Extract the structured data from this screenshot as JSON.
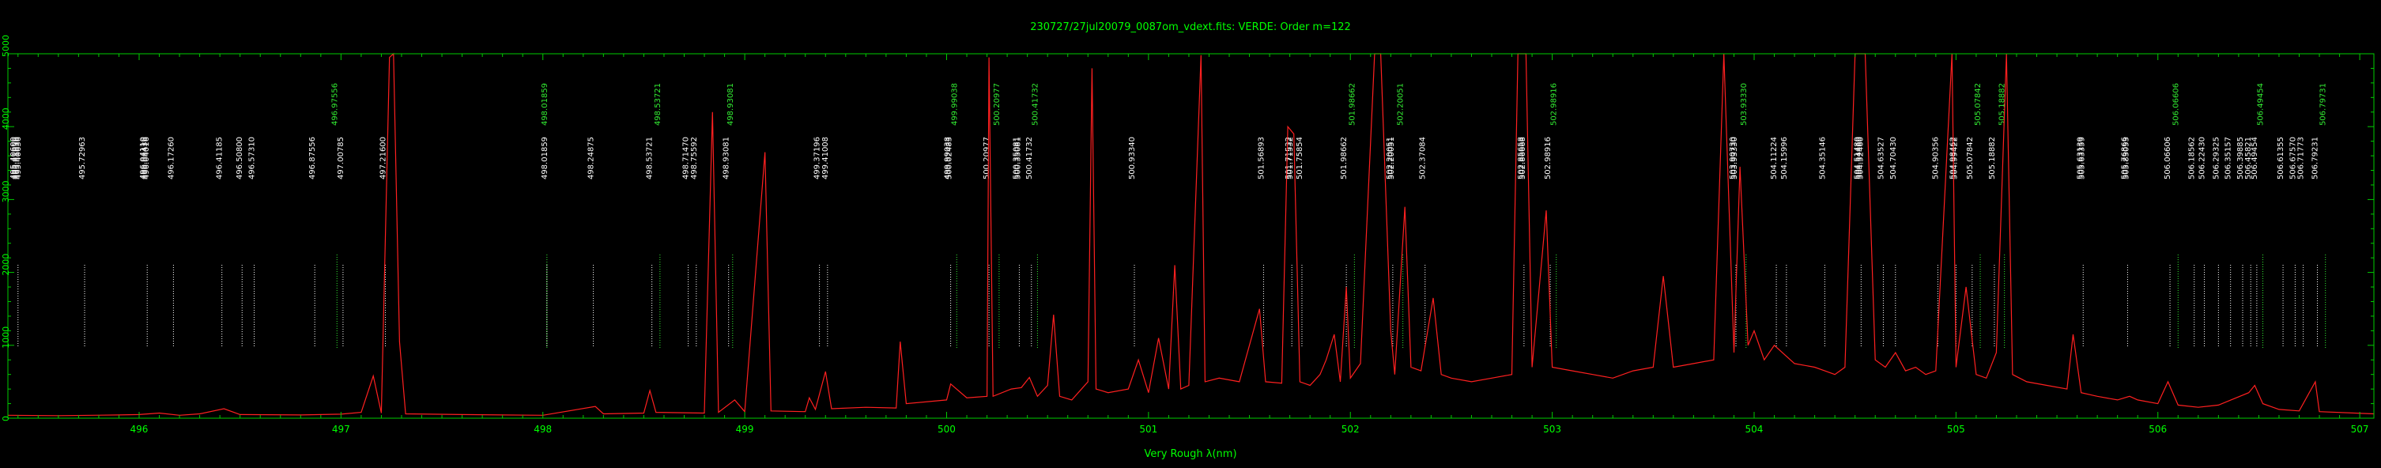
{
  "chart_data": {
    "type": "line",
    "title": "230727/27jul20079_0087om_vdext.fits: VERDE: Order m=122",
    "xlabel": "Very Rough λ(nm)",
    "ylabel": "",
    "xlim": [
      495.35,
      507.07
    ],
    "ylim": [
      0,
      5000
    ],
    "xticks": [
      496,
      497,
      498,
      499,
      500,
      501,
      502,
      503,
      504,
      505,
      506,
      507
    ],
    "yticks": [
      0,
      1000,
      2000,
      3000,
      4000,
      5000
    ],
    "grid": false,
    "legend": "none",
    "colors": {
      "background": "#000000",
      "frame": "#00cc00",
      "axis_text": "#00ff00",
      "spectrum": "#ff2020",
      "line_white": "#ffffff",
      "line_green": "#33ee33"
    },
    "series": [
      {
        "style": "spectrum",
        "points": [
          [
            495.35,
            40
          ],
          [
            495.6,
            35
          ],
          [
            495.9,
            45
          ],
          [
            496.0,
            50
          ],
          [
            496.1,
            70
          ],
          [
            496.2,
            40
          ],
          [
            496.3,
            60
          ],
          [
            496.42,
            130
          ],
          [
            496.5,
            50
          ],
          [
            496.8,
            45
          ],
          [
            497.0,
            55
          ],
          [
            497.1,
            80
          ],
          [
            497.16,
            580
          ],
          [
            497.2,
            70
          ],
          [
            497.24,
            4950
          ],
          [
            497.26,
            5000
          ],
          [
            497.29,
            1050
          ],
          [
            497.32,
            60
          ],
          [
            497.6,
            50
          ],
          [
            498.0,
            40
          ],
          [
            498.26,
            160
          ],
          [
            498.3,
            60
          ],
          [
            498.5,
            70
          ],
          [
            498.53,
            380
          ],
          [
            498.56,
            80
          ],
          [
            498.8,
            70
          ],
          [
            498.84,
            4200
          ],
          [
            498.87,
            80
          ],
          [
            498.95,
            250
          ],
          [
            499.0,
            90
          ],
          [
            499.1,
            3650
          ],
          [
            499.13,
            100
          ],
          [
            499.3,
            90
          ],
          [
            499.32,
            280
          ],
          [
            499.35,
            120
          ],
          [
            499.4,
            640
          ],
          [
            499.43,
            130
          ],
          [
            499.6,
            150
          ],
          [
            499.75,
            140
          ],
          [
            499.77,
            1050
          ],
          [
            499.8,
            200
          ],
          [
            500.0,
            250
          ],
          [
            500.02,
            470
          ],
          [
            500.1,
            280
          ],
          [
            500.2,
            300
          ],
          [
            500.21,
            4950
          ],
          [
            500.23,
            300
          ],
          [
            500.32,
            400
          ],
          [
            500.37,
            420
          ],
          [
            500.41,
            560
          ],
          [
            500.45,
            300
          ],
          [
            500.5,
            450
          ],
          [
            500.53,
            1420
          ],
          [
            500.56,
            300
          ],
          [
            500.62,
            250
          ],
          [
            500.7,
            500
          ],
          [
            500.72,
            4800
          ],
          [
            500.74,
            400
          ],
          [
            500.8,
            350
          ],
          [
            500.9,
            400
          ],
          [
            500.95,
            800
          ],
          [
            501.0,
            350
          ],
          [
            501.05,
            1100
          ],
          [
            501.1,
            400
          ],
          [
            501.13,
            2100
          ],
          [
            501.16,
            400
          ],
          [
            501.2,
            450
          ],
          [
            501.26,
            4980
          ],
          [
            501.28,
            500
          ],
          [
            501.35,
            550
          ],
          [
            501.45,
            500
          ],
          [
            501.55,
            1500
          ],
          [
            501.58,
            500
          ],
          [
            501.66,
            480
          ],
          [
            501.69,
            4000
          ],
          [
            501.72,
            3900
          ],
          [
            501.75,
            500
          ],
          [
            501.8,
            450
          ],
          [
            501.85,
            600
          ],
          [
            501.88,
            800
          ],
          [
            501.92,
            1150
          ],
          [
            501.95,
            500
          ],
          [
            501.98,
            1800
          ],
          [
            502.0,
            550
          ],
          [
            502.05,
            750
          ],
          [
            502.12,
            5000
          ],
          [
            502.15,
            5000
          ],
          [
            502.2,
            1200
          ],
          [
            502.22,
            600
          ],
          [
            502.27,
            2900
          ],
          [
            502.3,
            700
          ],
          [
            502.35,
            650
          ],
          [
            502.41,
            1650
          ],
          [
            502.45,
            600
          ],
          [
            502.5,
            550
          ],
          [
            502.6,
            500
          ],
          [
            502.7,
            550
          ],
          [
            502.8,
            600
          ],
          [
            502.83,
            5000
          ],
          [
            502.87,
            5000
          ],
          [
            502.9,
            700
          ],
          [
            502.97,
            2850
          ],
          [
            503.0,
            700
          ],
          [
            503.1,
            650
          ],
          [
            503.2,
            600
          ],
          [
            503.3,
            550
          ],
          [
            503.4,
            650
          ],
          [
            503.5,
            700
          ],
          [
            503.55,
            1950
          ],
          [
            503.6,
            700
          ],
          [
            503.7,
            750
          ],
          [
            503.8,
            800
          ],
          [
            503.85,
            5000
          ],
          [
            503.9,
            900
          ],
          [
            503.93,
            3450
          ],
          [
            503.97,
            1000
          ],
          [
            504.0,
            1200
          ],
          [
            504.05,
            800
          ],
          [
            504.1,
            1000
          ],
          [
            504.2,
            750
          ],
          [
            504.3,
            700
          ],
          [
            504.35,
            650
          ],
          [
            504.4,
            600
          ],
          [
            504.45,
            700
          ],
          [
            504.5,
            5000
          ],
          [
            504.55,
            5000
          ],
          [
            504.6,
            800
          ],
          [
            504.65,
            700
          ],
          [
            504.7,
            900
          ],
          [
            504.75,
            650
          ],
          [
            504.8,
            700
          ],
          [
            504.85,
            600
          ],
          [
            504.9,
            650
          ],
          [
            504.98,
            5000
          ],
          [
            505.0,
            700
          ],
          [
            505.05,
            1800
          ],
          [
            505.1,
            600
          ],
          [
            505.15,
            550
          ],
          [
            505.2,
            900
          ],
          [
            505.25,
            5000
          ],
          [
            505.28,
            600
          ],
          [
            505.35,
            500
          ],
          [
            505.45,
            450
          ],
          [
            505.55,
            400
          ],
          [
            505.58,
            1150
          ],
          [
            505.62,
            350
          ],
          [
            505.7,
            300
          ],
          [
            505.8,
            250
          ],
          [
            505.86,
            300
          ],
          [
            505.9,
            250
          ],
          [
            506.0,
            200
          ],
          [
            506.05,
            500
          ],
          [
            506.1,
            180
          ],
          [
            506.2,
            150
          ],
          [
            506.3,
            180
          ],
          [
            506.45,
            350
          ],
          [
            506.48,
            450
          ],
          [
            506.52,
            200
          ],
          [
            506.6,
            120
          ],
          [
            506.7,
            100
          ],
          [
            506.78,
            500
          ],
          [
            506.8,
            90
          ],
          [
            507.07,
            60
          ]
        ]
      }
    ],
    "line_ids": [
      {
        "wl": 495.4,
        "labels": [
          "495.40600",
          "495.41656",
          "495.41636",
          "495.40636"
        ],
        "color": "white"
      },
      {
        "wl": 495.73,
        "labels": [
          "495.72963"
        ],
        "color": "white"
      },
      {
        "wl": 496.04,
        "labels": [
          "496.04110",
          "496.04436",
          "496.04016"
        ],
        "color": "white"
      },
      {
        "wl": 496.17,
        "labels": [
          "496.17260"
        ],
        "color": "white"
      },
      {
        "wl": 496.41,
        "labels": [
          "496.41185"
        ],
        "color": "white"
      },
      {
        "wl": 496.51,
        "labels": [
          "496.50800"
        ],
        "color": "white"
      },
      {
        "wl": 496.57,
        "labels": [
          "496.57310"
        ],
        "color": "white"
      },
      {
        "wl": 496.87,
        "labels": [
          "496.87556"
        ],
        "color": "white"
      },
      {
        "wl": 496.98,
        "labels": [
          "496.97556"
        ],
        "color": "green"
      },
      {
        "wl": 497.01,
        "labels": [
          "497.00785"
        ],
        "color": "white"
      },
      {
        "wl": 497.22,
        "labels": [
          "497.21600"
        ],
        "color": "white"
      },
      {
        "wl": 498.02,
        "labels": [
          "498.01859"
        ],
        "color": "white"
      },
      {
        "wl": 498.02,
        "labels": [
          "498.01859"
        ],
        "color": "green"
      },
      {
        "wl": 498.25,
        "labels": [
          "498.24875"
        ],
        "color": "white"
      },
      {
        "wl": 498.54,
        "labels": [
          "498.53721"
        ],
        "color": "white"
      },
      {
        "wl": 498.58,
        "labels": [
          "498.53721"
        ],
        "color": "green"
      },
      {
        "wl": 498.72,
        "labels": [
          "498.71470"
        ],
        "color": "white"
      },
      {
        "wl": 498.76,
        "labels": [
          "498.75592"
        ],
        "color": "white"
      },
      {
        "wl": 498.92,
        "labels": [
          "498.93081"
        ],
        "color": "white"
      },
      {
        "wl": 498.94,
        "labels": [
          "498.93081"
        ],
        "color": "green"
      },
      {
        "wl": 499.37,
        "labels": [
          "499.37196"
        ],
        "color": "white"
      },
      {
        "wl": 499.41,
        "labels": [
          "499.41008"
        ],
        "color": "white"
      },
      {
        "wl": 500.02,
        "labels": [
          "499.99038",
          "500.02483"
        ],
        "color": "white"
      },
      {
        "wl": 500.05,
        "labels": [
          "499.99038"
        ],
        "color": "green"
      },
      {
        "wl": 500.21,
        "labels": [
          "500.20977"
        ],
        "color": "white"
      },
      {
        "wl": 500.26,
        "labels": [
          "500.20977"
        ],
        "color": "green"
      },
      {
        "wl": 500.36,
        "labels": [
          "500.35081",
          "500.35081"
        ],
        "color": "white"
      },
      {
        "wl": 500.42,
        "labels": [
          "500.41732"
        ],
        "color": "white"
      },
      {
        "wl": 500.45,
        "labels": [
          "500.41732"
        ],
        "color": "green"
      },
      {
        "wl": 500.93,
        "labels": [
          "500.93340"
        ],
        "color": "white"
      },
      {
        "wl": 501.57,
        "labels": [
          "501.56893"
        ],
        "color": "white"
      },
      {
        "wl": 501.71,
        "labels": [
          "501.71532",
          "501.71532"
        ],
        "color": "white"
      },
      {
        "wl": 501.76,
        "labels": [
          "501.75854"
        ],
        "color": "white"
      },
      {
        "wl": 501.98,
        "labels": [
          "501.98662"
        ],
        "color": "white"
      },
      {
        "wl": 502.02,
        "labels": [
          "501.98662"
        ],
        "color": "green"
      },
      {
        "wl": 502.21,
        "labels": [
          "502.20051",
          "502.20051"
        ],
        "color": "white"
      },
      {
        "wl": 502.26,
        "labels": [
          "502.20051"
        ],
        "color": "green"
      },
      {
        "wl": 502.37,
        "labels": [
          "502.37084"
        ],
        "color": "white"
      },
      {
        "wl": 502.86,
        "labels": [
          "502.85658",
          "502.86668"
        ],
        "color": "white"
      },
      {
        "wl": 502.99,
        "labels": [
          "502.98916"
        ],
        "color": "white"
      },
      {
        "wl": 503.02,
        "labels": [
          "502.98916"
        ],
        "color": "green"
      },
      {
        "wl": 503.91,
        "labels": [
          "503.90730",
          "503.93330"
        ],
        "color": "white"
      },
      {
        "wl": 503.96,
        "labels": [
          "503.93330"
        ],
        "color": "green"
      },
      {
        "wl": 504.11,
        "labels": [
          "504.11224"
        ],
        "color": "white"
      },
      {
        "wl": 504.16,
        "labels": [
          "504.15996"
        ],
        "color": "white"
      },
      {
        "wl": 504.35,
        "labels": [
          "504.35146"
        ],
        "color": "white"
      },
      {
        "wl": 504.53,
        "labels": [
          "504.51480",
          "504.54460",
          "504.52460"
        ],
        "color": "white"
      },
      {
        "wl": 504.64,
        "labels": [
          "504.63527"
        ],
        "color": "white"
      },
      {
        "wl": 504.7,
        "labels": [
          "504.70430"
        ],
        "color": "white"
      },
      {
        "wl": 504.91,
        "labels": [
          "504.90356"
        ],
        "color": "white"
      },
      {
        "wl": 505.0,
        "labels": [
          "504.98462",
          "504.99422"
        ],
        "color": "white"
      },
      {
        "wl": 505.08,
        "labels": [
          "505.07842"
        ],
        "color": "white"
      },
      {
        "wl": 505.12,
        "labels": [
          "505.07842"
        ],
        "color": "green"
      },
      {
        "wl": 505.19,
        "labels": [
          "505.18882"
        ],
        "color": "white"
      },
      {
        "wl": 505.24,
        "labels": [
          "505.18882"
        ],
        "color": "green"
      },
      {
        "wl": 505.63,
        "labels": [
          "505.63139",
          "505.63359"
        ],
        "color": "white"
      },
      {
        "wl": 505.85,
        "labels": [
          "505.76866",
          "505.83053"
        ],
        "color": "white"
      },
      {
        "wl": 506.06,
        "labels": [
          "506.06606"
        ],
        "color": "white"
      },
      {
        "wl": 506.1,
        "labels": [
          "506.06606"
        ],
        "color": "green"
      },
      {
        "wl": 506.18,
        "labels": [
          "506.18562"
        ],
        "color": "white"
      },
      {
        "wl": 506.23,
        "labels": [
          "506.22430"
        ],
        "color": "white"
      },
      {
        "wl": 506.3,
        "labels": [
          "506.29325"
        ],
        "color": "white"
      },
      {
        "wl": 506.36,
        "labels": [
          "506.35157"
        ],
        "color": "white"
      },
      {
        "wl": 506.42,
        "labels": [
          "506.39885"
        ],
        "color": "white"
      },
      {
        "wl": 506.46,
        "labels": [
          "506.45821"
        ],
        "color": "white"
      },
      {
        "wl": 506.49,
        "labels": [
          "506.49454"
        ],
        "color": "white"
      },
      {
        "wl": 506.52,
        "labels": [
          "506.49454"
        ],
        "color": "green"
      },
      {
        "wl": 506.62,
        "labels": [
          "506.61355"
        ],
        "color": "white"
      },
      {
        "wl": 506.68,
        "labels": [
          "506.67570"
        ],
        "color": "white"
      },
      {
        "wl": 506.72,
        "labels": [
          "506.71773"
        ],
        "color": "white"
      },
      {
        "wl": 506.79,
        "labels": [
          "506.79231"
        ],
        "color": "white"
      },
      {
        "wl": 506.83,
        "labels": [
          "506.79731"
        ],
        "color": "green"
      }
    ]
  }
}
